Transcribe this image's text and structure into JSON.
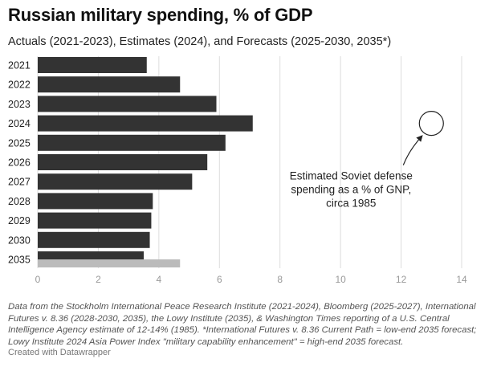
{
  "header": {
    "title": "Russian military spending, % of GDP",
    "subtitle": "Actuals (2021-2023), Estimates (2024), and Forecasts (2025-2030, 2035*)"
  },
  "chart_data": {
    "type": "bar",
    "orientation": "horizontal",
    "categories": [
      "2021",
      "2022",
      "2023",
      "2024",
      "2025",
      "2026",
      "2027",
      "2028",
      "2029",
      "2030",
      "2035"
    ],
    "values": [
      3.6,
      4.7,
      5.9,
      7.1,
      6.2,
      5.6,
      5.1,
      3.8,
      3.75,
      3.7,
      3.5
    ],
    "series": [
      {
        "name": "Spending (% of GDP)",
        "values": [
          3.6,
          4.7,
          5.9,
          7.1,
          6.2,
          5.6,
          5.1,
          3.8,
          3.75,
          3.7,
          3.5
        ],
        "color": "#333333"
      },
      {
        "name": "High-end 2035 forecast",
        "values": [
          null,
          null,
          null,
          null,
          null,
          null,
          null,
          null,
          null,
          null,
          4.7
        ],
        "color": "#bbbbbb"
      }
    ],
    "xlim": [
      0,
      14
    ],
    "xticks": [
      "0",
      "2",
      "4",
      "6",
      "8",
      "10",
      "12",
      "14"
    ],
    "grid": true,
    "marker": {
      "x": 13,
      "category": "2024"
    },
    "annotation": {
      "lines": [
        "Estimated Soviet defense",
        "spending as a % of GNP,",
        "circa 1985"
      ]
    }
  },
  "footer": {
    "notes": "Data from the Stockholm International Peace Research Institute (2021-2024), Bloomberg (2025-2027), International Futures v. 8.36 (2028-2030, 2035), the Lowy Institute (2035), & Washington Times reporting of a U.S. Central Intelligence Agency estimate of 12-14% (1985). *International Futures v. 8.36 Current Path = low-end 2035 forecast; Lowy Institute 2024 Asia Power Index \"military capability enhancement\" = high-end 2035 forecast.",
    "credit": "Created with Datawrapper"
  },
  "colors": {
    "bar": "#333333",
    "bar_high": "#bbbbbb",
    "grid": "#dddddd",
    "tick": "#999999"
  }
}
